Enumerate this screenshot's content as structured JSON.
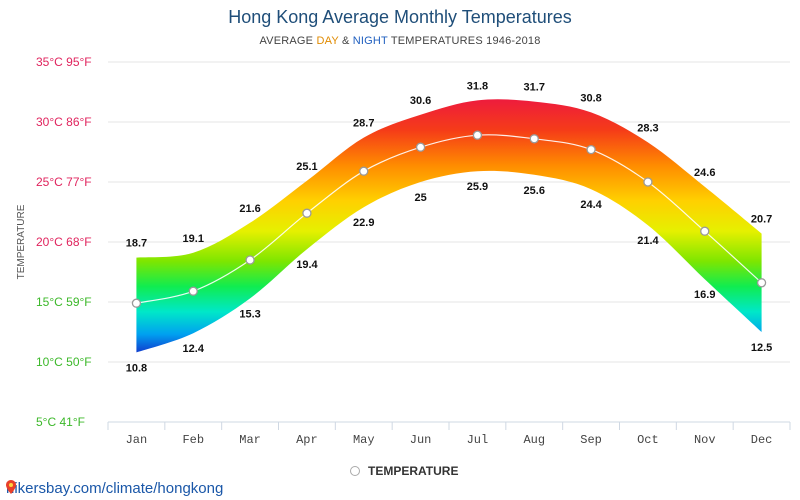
{
  "page": {
    "title": "Hong Kong Average Monthly Temperatures",
    "subtitle_prefix": "AVERAGE ",
    "subtitle_day": "DAY",
    "subtitle_amp": " & ",
    "subtitle_night": "NIGHT",
    "subtitle_suffix": " TEMPERATURES 1946-2018",
    "legend_label": "TEMPERATURE",
    "footer_url": "hikersbay.com/climate/hongkong"
  },
  "chart_data": {
    "type": "area",
    "title": "Hong Kong Average Monthly Temperatures",
    "subtitle": "AVERAGE DAY & NIGHT TEMPERATURES 1946-2018",
    "ylabel": "TEMPERATURE",
    "xlabel": "",
    "categories": [
      "Jan",
      "Feb",
      "Mar",
      "Apr",
      "May",
      "Jun",
      "Jul",
      "Aug",
      "Sep",
      "Oct",
      "Nov",
      "Dec"
    ],
    "ylim": [
      5,
      35
    ],
    "yticks": [
      {
        "c": 35,
        "label": "35°C 95°F",
        "color": "#e0245e"
      },
      {
        "c": 30,
        "label": "30°C 86°F",
        "color": "#e0245e"
      },
      {
        "c": 25,
        "label": "25°C 77°F",
        "color": "#e0245e"
      },
      {
        "c": 20,
        "label": "20°C 68°F",
        "color": "#e0245e"
      },
      {
        "c": 15,
        "label": "15°C 59°F",
        "color": "#3cb82a"
      },
      {
        "c": 10,
        "label": "10°C 50°F",
        "color": "#3cb82a"
      },
      {
        "c": 5,
        "label": "5°C 41°F",
        "color": "#3cb82a"
      }
    ],
    "series": [
      {
        "name": "DAY",
        "values": [
          18.7,
          19.1,
          21.6,
          25.1,
          28.7,
          30.6,
          31.8,
          31.7,
          30.8,
          28.3,
          24.6,
          20.7
        ]
      },
      {
        "name": "NIGHT",
        "values": [
          10.8,
          12.4,
          15.3,
          19.4,
          22.9,
          25,
          25.9,
          25.6,
          24.4,
          21.4,
          16.9,
          12.5
        ]
      },
      {
        "name": "TEMPERATURE",
        "values": [
          14.9,
          15.9,
          18.5,
          22.4,
          25.9,
          27.9,
          28.9,
          28.6,
          27.7,
          25.0,
          20.9,
          16.6
        ]
      }
    ],
    "grid": true,
    "legend": "bottom-center"
  }
}
